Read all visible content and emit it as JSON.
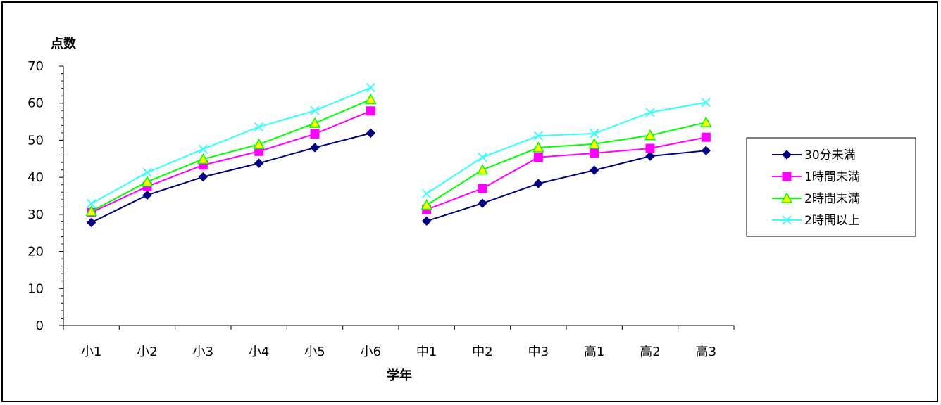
{
  "chart_data": {
    "type": "line",
    "title": "",
    "xlabel": "学年",
    "ylabel": "点数",
    "ylim": [
      0,
      70
    ],
    "yticks": [
      0,
      10,
      20,
      30,
      40,
      50,
      60,
      70
    ],
    "categories": [
      "小1",
      "小2",
      "小3",
      "小4",
      "小5",
      "小6",
      "中1",
      "中2",
      "中3",
      "高1",
      "高2",
      "高3"
    ],
    "segments": [
      [
        0,
        5
      ],
      [
        6,
        11
      ]
    ],
    "grid": false,
    "legend_position": "right",
    "series": [
      {
        "name": "30分未満",
        "color": "#000080",
        "marker": "diamond",
        "values": [
          27.8,
          35.2,
          40.1,
          43.8,
          48.0,
          51.9,
          28.2,
          33.0,
          38.3,
          41.9,
          45.7,
          47.2
        ]
      },
      {
        "name": "1時間未満",
        "color": "#ff00ff",
        "marker": "square",
        "values": [
          30.5,
          37.5,
          43.3,
          47.0,
          51.7,
          57.9,
          31.3,
          37.0,
          45.4,
          46.5,
          47.8,
          50.8
        ]
      },
      {
        "name": "2時間未満",
        "color": "#00ff00",
        "marker": "triangle",
        "values": [
          30.8,
          38.8,
          44.9,
          48.9,
          54.6,
          61.0,
          32.5,
          42.0,
          48.0,
          49.0,
          51.3,
          54.8
        ]
      },
      {
        "name": "2時間以上",
        "color": "#33ffff",
        "marker": "x",
        "values": [
          32.9,
          41.3,
          47.6,
          53.6,
          58.0,
          64.2,
          35.6,
          45.4,
          51.2,
          51.8,
          57.5,
          60.2
        ]
      }
    ]
  }
}
